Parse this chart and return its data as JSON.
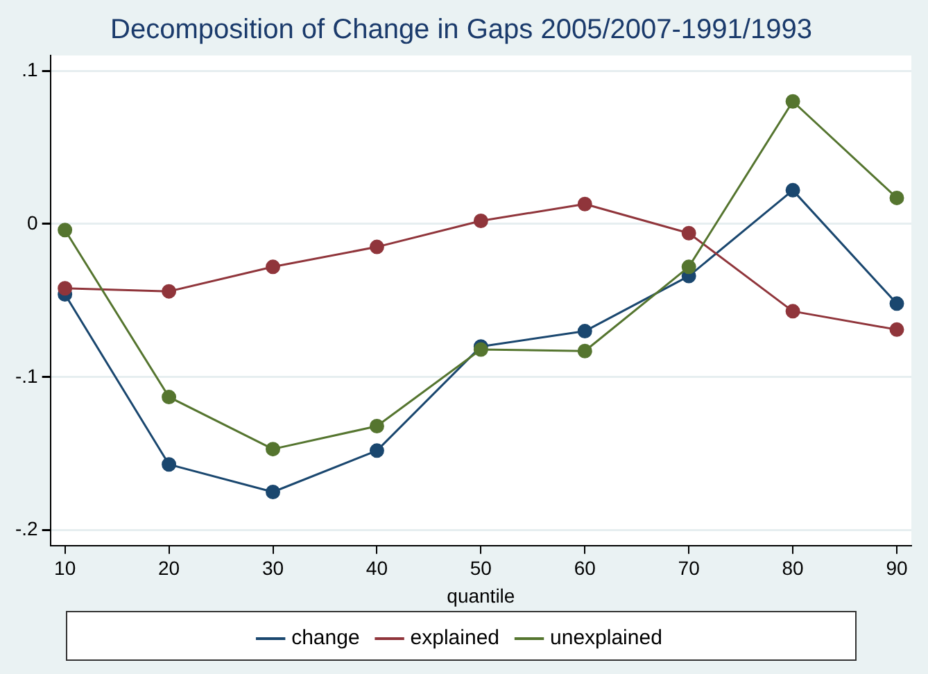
{
  "chart_data": {
    "type": "line",
    "title": "Decomposition of Change in Gaps 2005/2007-1991/1993",
    "xlabel": "quantile",
    "x": [
      10,
      20,
      30,
      40,
      50,
      60,
      70,
      80,
      90
    ],
    "series": [
      {
        "name": "change",
        "color": "#1a476f",
        "values": [
          -0.046,
          -0.157,
          -0.175,
          -0.148,
          -0.08,
          -0.07,
          -0.034,
          0.022,
          -0.052
        ]
      },
      {
        "name": "explained",
        "color": "#90353b",
        "values": [
          -0.042,
          -0.044,
          -0.028,
          -0.015,
          0.002,
          0.013,
          -0.006,
          -0.057,
          -0.069
        ]
      },
      {
        "name": "unexplained",
        "color": "#55752f",
        "values": [
          -0.004,
          -0.113,
          -0.147,
          -0.132,
          -0.082,
          -0.083,
          -0.028,
          0.08,
          0.017
        ]
      }
    ],
    "xlim": [
      8.6,
      91.4
    ],
    "xticks": [
      10,
      20,
      30,
      40,
      50,
      60,
      70,
      80,
      90
    ],
    "ylim": [
      -0.21,
      0.11
    ],
    "yticks": [
      {
        "value": -0.2,
        "label": "-.2"
      },
      {
        "value": -0.1,
        "label": "-.1"
      },
      {
        "value": 0,
        "label": "0"
      },
      {
        "value": 0.1,
        "label": ".1"
      }
    ],
    "grid": "y",
    "legend": "bottom",
    "marker": "circle",
    "line_style": "solid"
  }
}
